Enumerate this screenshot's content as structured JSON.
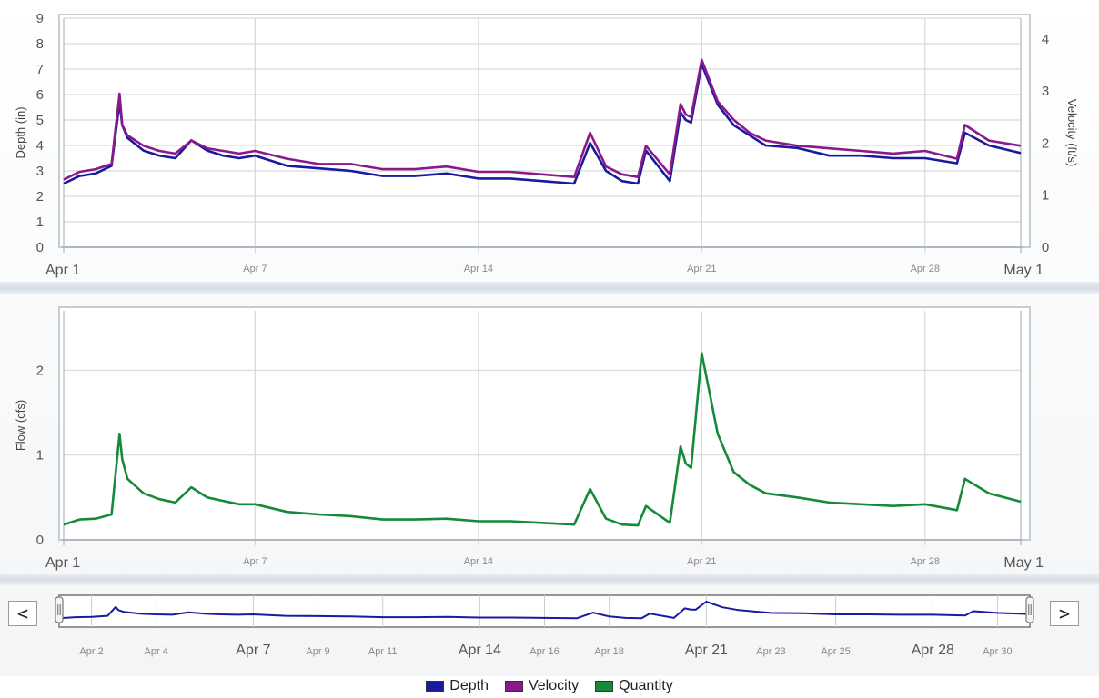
{
  "chart_data": [
    {
      "type": "line",
      "x_type": "date",
      "xlim": [
        "Apr 1",
        "May 1"
      ],
      "x_tick_labels": [
        {
          "at": "Apr 1",
          "label": "Apr 1"
        },
        {
          "at": "Apr 7",
          "label": "Apr 7"
        },
        {
          "at": "Apr 14",
          "label": "Apr 14"
        },
        {
          "at": "Apr 21",
          "label": "Apr 21"
        },
        {
          "at": "Apr 28",
          "label": "Apr 28"
        },
        {
          "at": "May 1",
          "label": "May 1"
        }
      ],
      "ylabel": "Depth (in)",
      "ylim": [
        0,
        9
      ],
      "y_ticks": [
        0,
        1,
        2,
        3,
        4,
        5,
        6,
        7,
        8,
        9
      ],
      "y2label": "Velocity (ft/s)",
      "y2lim": [
        0,
        4.4
      ],
      "y2_ticks": [
        0,
        1,
        2,
        3,
        4
      ],
      "grid": true,
      "series": [
        {
          "name": "Depth",
          "axis": "left",
          "color": "#1a1aa0",
          "x": [
            "Apr 1",
            "Apr 1 12:00",
            "Apr 2",
            "Apr 2 12:00",
            "Apr 2 18:00",
            "Apr 2 20:00",
            "Apr 3",
            "Apr 3 12:00",
            "Apr 4",
            "Apr 4 12:00",
            "Apr 5",
            "Apr 5 12:00",
            "Apr 6",
            "Apr 6 12:00",
            "Apr 7",
            "Apr 8",
            "Apr 9",
            "Apr 10",
            "Apr 11",
            "Apr 12",
            "Apr 13",
            "Apr 14",
            "Apr 15",
            "Apr 16",
            "Apr 17",
            "Apr 17 12:00",
            "Apr 18",
            "Apr 18 12:00",
            "Apr 19",
            "Apr 19 6:00",
            "Apr 20",
            "Apr 20 8:00",
            "Apr 20 12:00",
            "Apr 20 16:00",
            "Apr 21",
            "Apr 21 12:00",
            "Apr 22",
            "Apr 22 12:00",
            "Apr 23",
            "Apr 24",
            "Apr 25",
            "Apr 26",
            "Apr 27",
            "Apr 28",
            "Apr 29",
            "Apr 29 6:00",
            "Apr 30",
            "May 1"
          ],
          "y": [
            2.5,
            2.8,
            2.9,
            3.2,
            5.7,
            4.8,
            4.3,
            3.8,
            3.6,
            3.5,
            4.2,
            3.8,
            3.6,
            3.5,
            3.6,
            3.2,
            3.1,
            3.0,
            2.8,
            2.8,
            2.9,
            2.7,
            2.7,
            2.6,
            2.5,
            4.1,
            3.0,
            2.6,
            2.5,
            3.8,
            2.6,
            5.3,
            5.0,
            4.9,
            7.2,
            5.6,
            4.8,
            4.4,
            4.0,
            3.9,
            3.6,
            3.6,
            3.5,
            3.5,
            3.3,
            4.5,
            4.0,
            3.7
          ]
        },
        {
          "name": "Velocity",
          "axis": "right",
          "color": "#8a1a8a",
          "x": [
            "Apr 1",
            "Apr 1 12:00",
            "Apr 2",
            "Apr 2 12:00",
            "Apr 2 18:00",
            "Apr 2 20:00",
            "Apr 3",
            "Apr 3 12:00",
            "Apr 4",
            "Apr 4 12:00",
            "Apr 5",
            "Apr 5 12:00",
            "Apr 6",
            "Apr 6 12:00",
            "Apr 7",
            "Apr 8",
            "Apr 9",
            "Apr 10",
            "Apr 11",
            "Apr 12",
            "Apr 13",
            "Apr 14",
            "Apr 15",
            "Apr 16",
            "Apr 17",
            "Apr 17 12:00",
            "Apr 18",
            "Apr 18 12:00",
            "Apr 19",
            "Apr 19 6:00",
            "Apr 20",
            "Apr 20 8:00",
            "Apr 20 12:00",
            "Apr 20 16:00",
            "Apr 21",
            "Apr 21 12:00",
            "Apr 22",
            "Apr 22 12:00",
            "Apr 23",
            "Apr 24",
            "Apr 25",
            "Apr 26",
            "Apr 27",
            "Apr 28",
            "Apr 29",
            "Apr 29 6:00",
            "Apr 30",
            "May 1"
          ],
          "y": [
            1.3,
            1.45,
            1.5,
            1.6,
            2.95,
            2.35,
            2.15,
            1.95,
            1.85,
            1.8,
            2.05,
            1.9,
            1.85,
            1.8,
            1.85,
            1.7,
            1.6,
            1.6,
            1.5,
            1.5,
            1.55,
            1.45,
            1.45,
            1.4,
            1.35,
            2.2,
            1.55,
            1.4,
            1.35,
            1.95,
            1.4,
            2.75,
            2.55,
            2.5,
            3.6,
            2.8,
            2.45,
            2.2,
            2.05,
            1.95,
            1.9,
            1.85,
            1.8,
            1.85,
            1.7,
            2.35,
            2.05,
            1.95
          ]
        }
      ]
    },
    {
      "type": "line",
      "x_type": "date",
      "xlim": [
        "Apr 1",
        "May 1"
      ],
      "x_tick_labels": [
        {
          "at": "Apr 1",
          "label": "Apr 1"
        },
        {
          "at": "Apr 7",
          "label": "Apr 7"
        },
        {
          "at": "Apr 14",
          "label": "Apr 14"
        },
        {
          "at": "Apr 21",
          "label": "Apr 21"
        },
        {
          "at": "Apr 28",
          "label": "Apr 28"
        },
        {
          "at": "May 1",
          "label": "May 1"
        }
      ],
      "ylabel": "Flow (cfs)",
      "ylim": [
        0,
        2.7
      ],
      "y_ticks": [
        0,
        1,
        2
      ],
      "grid": true,
      "series": [
        {
          "name": "Quantity",
          "color": "#168a3a",
          "x": [
            "Apr 1",
            "Apr 1 12:00",
            "Apr 2",
            "Apr 2 12:00",
            "Apr 2 18:00",
            "Apr 2 20:00",
            "Apr 3",
            "Apr 3 12:00",
            "Apr 4",
            "Apr 4 12:00",
            "Apr 5",
            "Apr 5 12:00",
            "Apr 6",
            "Apr 6 12:00",
            "Apr 7",
            "Apr 8",
            "Apr 9",
            "Apr 10",
            "Apr 11",
            "Apr 12",
            "Apr 13",
            "Apr 14",
            "Apr 15",
            "Apr 16",
            "Apr 17",
            "Apr 17 12:00",
            "Apr 18",
            "Apr 18 12:00",
            "Apr 19",
            "Apr 19 6:00",
            "Apr 20",
            "Apr 20 8:00",
            "Apr 20 12:00",
            "Apr 20 16:00",
            "Apr 21",
            "Apr 21 12:00",
            "Apr 22",
            "Apr 22 12:00",
            "Apr 23",
            "Apr 24",
            "Apr 25",
            "Apr 26",
            "Apr 27",
            "Apr 28",
            "Apr 29",
            "Apr 29 6:00",
            "Apr 30",
            "May 1"
          ],
          "y": [
            0.18,
            0.24,
            0.25,
            0.3,
            1.25,
            0.95,
            0.72,
            0.55,
            0.48,
            0.44,
            0.62,
            0.5,
            0.46,
            0.42,
            0.42,
            0.33,
            0.3,
            0.28,
            0.24,
            0.24,
            0.25,
            0.22,
            0.22,
            0.2,
            0.18,
            0.6,
            0.25,
            0.18,
            0.17,
            0.4,
            0.2,
            1.1,
            0.9,
            0.85,
            2.2,
            1.25,
            0.8,
            0.65,
            0.55,
            0.5,
            0.44,
            0.42,
            0.4,
            0.42,
            0.35,
            0.72,
            0.55,
            0.45
          ]
        }
      ]
    },
    {
      "type": "line",
      "x_type": "date",
      "xlim": [
        "Apr 1",
        "May 1"
      ],
      "x_tick_labels": [
        {
          "at": "Apr 2",
          "label": "Apr 2"
        },
        {
          "at": "Apr 4",
          "label": "Apr 4"
        },
        {
          "at": "Apr 7",
          "label": "Apr 7"
        },
        {
          "at": "Apr 9",
          "label": "Apr 9"
        },
        {
          "at": "Apr 11",
          "label": "Apr 11"
        },
        {
          "at": "Apr 14",
          "label": "Apr 14"
        },
        {
          "at": "Apr 16",
          "label": "Apr 16"
        },
        {
          "at": "Apr 18",
          "label": "Apr 18"
        },
        {
          "at": "Apr 21",
          "label": "Apr 21"
        },
        {
          "at": "Apr 23",
          "label": "Apr 23"
        },
        {
          "at": "Apr 25",
          "label": "Apr 25"
        },
        {
          "at": "Apr 28",
          "label": "Apr 28"
        },
        {
          "at": "Apr 30",
          "label": "Apr 30"
        }
      ],
      "grid": true,
      "series": [
        {
          "name": "Depth",
          "color": "#1a1aa0",
          "x": [
            "Apr 1",
            "Apr 1 12:00",
            "Apr 2",
            "Apr 2 12:00",
            "Apr 2 18:00",
            "Apr 2 20:00",
            "Apr 3",
            "Apr 3 12:00",
            "Apr 4",
            "Apr 4 12:00",
            "Apr 5",
            "Apr 5 12:00",
            "Apr 6",
            "Apr 6 12:00",
            "Apr 7",
            "Apr 8",
            "Apr 9",
            "Apr 10",
            "Apr 11",
            "Apr 12",
            "Apr 13",
            "Apr 14",
            "Apr 15",
            "Apr 16",
            "Apr 17",
            "Apr 17 12:00",
            "Apr 18",
            "Apr 18 12:00",
            "Apr 19",
            "Apr 19 6:00",
            "Apr 20",
            "Apr 20 8:00",
            "Apr 20 12:00",
            "Apr 20 16:00",
            "Apr 21",
            "Apr 21 12:00",
            "Apr 22",
            "Apr 22 12:00",
            "Apr 23",
            "Apr 24",
            "Apr 25",
            "Apr 26",
            "Apr 27",
            "Apr 28",
            "Apr 29",
            "Apr 29 6:00",
            "Apr 30",
            "May 1"
          ],
          "y": [
            2.5,
            2.8,
            2.9,
            3.2,
            5.7,
            4.8,
            4.3,
            3.8,
            3.6,
            3.5,
            4.2,
            3.8,
            3.6,
            3.5,
            3.6,
            3.2,
            3.1,
            3.0,
            2.8,
            2.8,
            2.9,
            2.7,
            2.7,
            2.6,
            2.5,
            4.1,
            3.0,
            2.6,
            2.5,
            3.8,
            2.6,
            5.3,
            5.0,
            4.9,
            7.2,
            5.6,
            4.8,
            4.4,
            4.0,
            3.9,
            3.6,
            3.6,
            3.5,
            3.5,
            3.3,
            4.5,
            4.0,
            3.7
          ]
        }
      ]
    }
  ],
  "navigator": {
    "prev_label": "<",
    "next_label": ">",
    "prev_icon": "chevron-left-icon",
    "next_icon": "chevron-right-icon"
  },
  "legend": [
    {
      "name": "Depth",
      "color": "#1a1aa0"
    },
    {
      "name": "Velocity",
      "color": "#8a1a8a"
    },
    {
      "name": "Quantity",
      "color": "#168a3a"
    }
  ]
}
